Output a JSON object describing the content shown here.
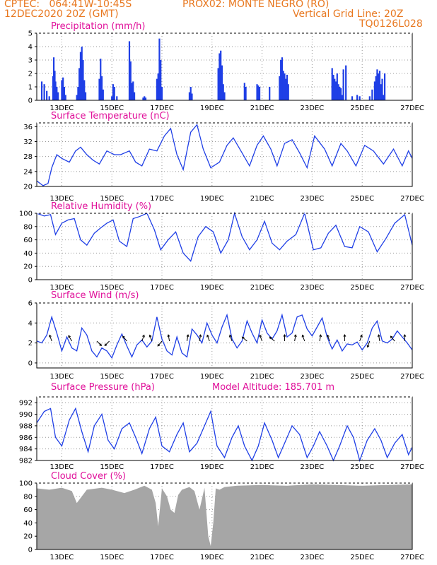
{
  "header": {
    "line1_left": "CPTEC:   064:41W-10:45S",
    "line1_mid": "PROX02: MONTE NEGRO (RO)",
    "line2_left": "12DEC2020 20Z (GMT)",
    "line2_right": "Vertical Grid Line: 20Z",
    "line3_right": "TQ0126L028"
  },
  "colors": {
    "header": "#e87820",
    "title": "#e0109a",
    "series": "#1f3fe6",
    "cloud": "#a6a6a6",
    "grid": "#999999"
  },
  "x_axis": {
    "range": [
      "12DEC 20Z",
      "27DEC 20Z"
    ],
    "tick_labels": [
      "13DEC",
      "15DEC",
      "17DEC",
      "19DEC",
      "21DEC",
      "23DEC",
      "25DEC",
      "27DEC"
    ],
    "tick_days": [
      1,
      3,
      5,
      7,
      9,
      11,
      13,
      15
    ]
  },
  "chart_data": [
    {
      "type": "bar",
      "title": "Precipitation (mm/h)",
      "ylim": [
        0,
        5
      ],
      "yticks": [
        "0",
        "1",
        "2",
        "3",
        "4",
        "5"
      ],
      "x_unit": "days since 12DEC2020 20Z",
      "bars": [
        [
          0.2,
          1.4
        ],
        [
          0.3,
          1.2
        ],
        [
          0.4,
          0.7
        ],
        [
          0.5,
          0.3
        ],
        [
          0.65,
          1.8
        ],
        [
          0.68,
          3.2
        ],
        [
          0.72,
          2.2
        ],
        [
          0.75,
          1.4
        ],
        [
          0.8,
          1.0
        ],
        [
          0.85,
          0.6
        ],
        [
          1.0,
          1.5
        ],
        [
          1.05,
          1.7
        ],
        [
          1.1,
          1.0
        ],
        [
          1.15,
          0.4
        ],
        [
          1.6,
          0.4
        ],
        [
          1.65,
          1.0
        ],
        [
          1.7,
          2.4
        ],
        [
          1.75,
          3.6
        ],
        [
          1.8,
          4.0
        ],
        [
          1.85,
          3.0
        ],
        [
          1.9,
          1.5
        ],
        [
          1.95,
          0.6
        ],
        [
          2.5,
          1.6
        ],
        [
          2.55,
          3.1
        ],
        [
          2.6,
          1.8
        ],
        [
          2.65,
          0.8
        ],
        [
          3.0,
          0.3
        ],
        [
          3.05,
          1.2
        ],
        [
          3.1,
          1.0
        ],
        [
          3.2,
          0.3
        ],
        [
          3.7,
          4.4
        ],
        [
          3.75,
          2.9
        ],
        [
          3.8,
          1.3
        ],
        [
          3.85,
          1.4
        ],
        [
          3.9,
          0.6
        ],
        [
          4.25,
          0.2
        ],
        [
          4.3,
          0.3
        ],
        [
          4.35,
          0.2
        ],
        [
          4.8,
          1.6
        ],
        [
          4.85,
          2.0
        ],
        [
          4.9,
          4.6
        ],
        [
          4.95,
          3.0
        ],
        [
          5.0,
          1.0
        ],
        [
          6.1,
          0.6
        ],
        [
          6.15,
          1.0
        ],
        [
          6.2,
          0.5
        ],
        [
          7.25,
          2.4
        ],
        [
          7.3,
          3.5
        ],
        [
          7.35,
          3.7
        ],
        [
          7.4,
          2.6
        ],
        [
          7.45,
          1.2
        ],
        [
          7.5,
          0.6
        ],
        [
          8.3,
          1.3
        ],
        [
          8.35,
          1.0
        ],
        [
          8.8,
          1.2
        ],
        [
          8.85,
          1.1
        ],
        [
          8.9,
          1.0
        ],
        [
          9.3,
          1.0
        ],
        [
          9.7,
          1.8
        ],
        [
          9.75,
          3.0
        ],
        [
          9.8,
          3.2
        ],
        [
          9.85,
          2.2
        ],
        [
          9.9,
          2.0
        ],
        [
          9.95,
          1.6
        ],
        [
          10.0,
          1.9
        ],
        [
          10.05,
          1.2
        ],
        [
          11.8,
          2.4
        ],
        [
          11.85,
          1.9
        ],
        [
          11.9,
          1.6
        ],
        [
          11.95,
          1.4
        ],
        [
          12.0,
          2.0
        ],
        [
          12.05,
          1.2
        ],
        [
          12.1,
          1.0
        ],
        [
          12.15,
          0.9
        ],
        [
          12.2,
          0.4
        ],
        [
          12.25,
          2.3
        ],
        [
          12.35,
          2.6
        ],
        [
          12.6,
          0.3
        ],
        [
          12.8,
          0.4
        ],
        [
          12.9,
          0.3
        ],
        [
          13.3,
          0.3
        ],
        [
          13.4,
          0.8
        ],
        [
          13.5,
          1.4
        ],
        [
          13.55,
          1.8
        ],
        [
          13.6,
          2.3
        ],
        [
          13.65,
          2.0
        ],
        [
          13.7,
          2.2
        ],
        [
          13.75,
          1.2
        ],
        [
          13.8,
          1.6
        ],
        [
          13.85,
          0.4
        ],
        [
          13.9,
          2.0
        ]
      ]
    },
    {
      "type": "line",
      "title": "Surface Temperature (nC)",
      "ylim": [
        20,
        37
      ],
      "yticks": [
        "20",
        "24",
        "28",
        "32",
        "36"
      ],
      "x_unit": "days since 12DEC2020 20Z",
      "x": [
        0,
        0.25,
        0.45,
        0.6,
        0.8,
        1.0,
        1.3,
        1.55,
        1.75,
        2.0,
        2.25,
        2.5,
        2.8,
        3.1,
        3.35,
        3.7,
        3.95,
        4.2,
        4.5,
        4.8,
        5.1,
        5.35,
        5.6,
        5.85,
        6.15,
        6.4,
        6.65,
        6.95,
        7.3,
        7.6,
        7.85,
        8.2,
        8.5,
        8.8,
        9.05,
        9.35,
        9.6,
        9.9,
        10.2,
        10.5,
        10.8,
        11.1,
        11.5,
        11.8,
        12.15,
        12.4,
        12.75,
        13.1,
        13.45,
        13.85,
        14.25,
        14.6,
        14.85,
        15.0
      ],
      "y": [
        21.5,
        20.2,
        20.8,
        25,
        28.5,
        27.5,
        26.5,
        29.5,
        30.5,
        28.5,
        27,
        26,
        29.5,
        28.5,
        28.5,
        29.5,
        26.5,
        25.5,
        30,
        29.5,
        33.5,
        35.5,
        28.5,
        24.5,
        34.5,
        36.5,
        30,
        25,
        26.5,
        31,
        33,
        29,
        25.5,
        31,
        33.5,
        30,
        25.5,
        31.5,
        32.5,
        29,
        25,
        33.5,
        30,
        25.5,
        31.5,
        29.5,
        25.5,
        31,
        29.5,
        26,
        30,
        25.5,
        29.5,
        27.5
      ]
    },
    {
      "type": "line",
      "title": "Relative Humidity (%)",
      "ylim": [
        0,
        100
      ],
      "yticks": [
        "0",
        "20",
        "40",
        "60",
        "80",
        "100"
      ],
      "x_unit": "days since 12DEC2020 20Z",
      "x": [
        0,
        0.3,
        0.55,
        0.75,
        1.0,
        1.25,
        1.5,
        1.75,
        2.0,
        2.3,
        2.55,
        2.8,
        3.05,
        3.3,
        3.6,
        3.85,
        4.1,
        4.4,
        4.7,
        4.95,
        5.25,
        5.55,
        5.85,
        6.15,
        6.45,
        6.75,
        7.05,
        7.35,
        7.65,
        7.9,
        8.2,
        8.5,
        8.8,
        9.1,
        9.4,
        9.7,
        10.0,
        10.35,
        10.7,
        11.05,
        11.35,
        11.65,
        11.95,
        12.3,
        12.6,
        12.9,
        13.25,
        13.6,
        13.95,
        14.3,
        14.7,
        15.0
      ],
      "y": [
        100,
        96,
        98,
        68,
        85,
        90,
        92,
        60,
        52,
        70,
        78,
        85,
        90,
        58,
        50,
        92,
        95,
        100,
        75,
        45,
        60,
        72,
        40,
        28,
        65,
        80,
        72,
        40,
        60,
        100,
        65,
        45,
        60,
        88,
        55,
        45,
        58,
        68,
        100,
        45,
        48,
        70,
        82,
        50,
        48,
        80,
        72,
        42,
        62,
        85,
        98,
        52
      ]
    },
    {
      "type": "line",
      "title": "Surface Wind (m/s)",
      "ylim": [
        -0.5,
        6
      ],
      "yticks": [
        "0",
        "2",
        "4",
        "6"
      ],
      "x_unit": "days since 12DEC2020 20Z",
      "x": [
        0,
        0.2,
        0.4,
        0.6,
        0.8,
        1.0,
        1.2,
        1.4,
        1.6,
        1.8,
        2.0,
        2.2,
        2.4,
        2.6,
        2.8,
        3.0,
        3.2,
        3.4,
        3.6,
        3.8,
        4.0,
        4.2,
        4.4,
        4.6,
        4.8,
        5.0,
        5.2,
        5.4,
        5.6,
        5.8,
        6.0,
        6.2,
        6.4,
        6.6,
        6.8,
        7.0,
        7.2,
        7.4,
        7.6,
        7.8,
        8.0,
        8.2,
        8.4,
        8.6,
        8.8,
        9.0,
        9.2,
        9.4,
        9.6,
        9.8,
        10.0,
        10.2,
        10.4,
        10.6,
        10.8,
        11.0,
        11.2,
        11.4,
        11.6,
        11.8,
        12.0,
        12.2,
        12.4,
        12.6,
        12.8,
        13.0,
        13.2,
        13.4,
        13.6,
        13.8,
        14.0,
        14.2,
        14.4,
        14.6,
        14.8,
        15.0
      ],
      "y": [
        2.2,
        2.0,
        2.8,
        4.6,
        3.0,
        1.2,
        2.6,
        1.5,
        1.2,
        3.5,
        2.8,
        1.2,
        0.6,
        1.5,
        1.2,
        0.5,
        1.8,
        2.9,
        1.7,
        0.6,
        1.8,
        2.3,
        1.6,
        2.2,
        4.6,
        2.4,
        1.2,
        0.8,
        2.6,
        1.0,
        0.6,
        3.4,
        2.8,
        2.0,
        4.0,
        2.8,
        2.0,
        3.6,
        4.8,
        2.4,
        1.5,
        2.2,
        4.2,
        3.0,
        2.0,
        4.3,
        3.0,
        2.4,
        3.2,
        4.8,
        2.6,
        3.0,
        4.6,
        4.8,
        3.4,
        2.7,
        3.6,
        4.5,
        2.6,
        1.4,
        2.3,
        1.2,
        1.9,
        1.8,
        2.1,
        1.3,
        2.0,
        3.5,
        4.2,
        2.2,
        2.0,
        2.4,
        3.2,
        2.6,
        2.0,
        1.3
      ]
    },
    {
      "type": "line",
      "title": "Surface Pressure (hPa)",
      "annotation": "Model Altitude: 185.701 m",
      "ylim": [
        982,
        993
      ],
      "yticks": [
        "982",
        "984",
        "986",
        "988",
        "990",
        "992"
      ],
      "x_unit": "days since 12DEC2020 20Z",
      "x": [
        0,
        0.3,
        0.55,
        0.75,
        1.0,
        1.3,
        1.55,
        1.8,
        2.05,
        2.3,
        2.6,
        2.85,
        3.1,
        3.4,
        3.7,
        3.95,
        4.2,
        4.5,
        4.75,
        5.0,
        5.3,
        5.6,
        5.85,
        6.1,
        6.4,
        6.7,
        6.95,
        7.2,
        7.5,
        7.8,
        8.05,
        8.3,
        8.6,
        8.85,
        9.1,
        9.4,
        9.65,
        9.9,
        10.2,
        10.5,
        10.8,
        11.05,
        11.3,
        11.6,
        11.85,
        12.1,
        12.4,
        12.65,
        12.9,
        13.2,
        13.5,
        13.75,
        14.0,
        14.3,
        14.6,
        14.85,
        15.0
      ],
      "y": [
        988.5,
        990.5,
        991,
        986,
        984.5,
        989,
        991,
        987,
        983.5,
        988,
        990,
        985.5,
        984,
        987.5,
        988.5,
        986,
        983.2,
        987.5,
        989.5,
        984.5,
        983.5,
        986.5,
        988.5,
        983.5,
        985,
        988,
        990.5,
        984.5,
        982.5,
        986,
        988,
        984.5,
        982,
        984.5,
        988.5,
        985.5,
        982.5,
        985,
        988,
        986.5,
        982.5,
        984.5,
        987,
        984.5,
        982,
        984.5,
        988,
        986,
        982,
        985.5,
        987.5,
        985.5,
        982.5,
        985,
        986.5,
        983,
        984.3
      ]
    },
    {
      "type": "area",
      "title": "Cloud Cover (%)",
      "ylim": [
        0,
        100
      ],
      "yticks": [
        "0",
        "20",
        "40",
        "60",
        "80",
        "100"
      ],
      "x_unit": "days since 12DEC2020 20Z",
      "x": [
        0,
        0.5,
        1.0,
        1.4,
        1.6,
        2.0,
        2.6,
        3.0,
        3.5,
        3.9,
        4.3,
        4.6,
        4.75,
        4.85,
        5.0,
        5.2,
        5.35,
        5.5,
        5.65,
        5.8,
        6.1,
        6.3,
        6.5,
        6.7,
        6.85,
        6.95,
        7.05,
        7.15,
        7.3,
        7.5,
        8.0,
        9.0,
        10.0,
        11.0,
        12.0,
        13.0,
        14.0,
        15.0
      ],
      "y": [
        92,
        90,
        93,
        88,
        70,
        90,
        93,
        90,
        85,
        90,
        96,
        90,
        70,
        35,
        92,
        80,
        60,
        55,
        82,
        90,
        94,
        88,
        60,
        93,
        20,
        5,
        40,
        92,
        90,
        94,
        96,
        97,
        96,
        98,
        97,
        96,
        97,
        98
      ]
    }
  ]
}
